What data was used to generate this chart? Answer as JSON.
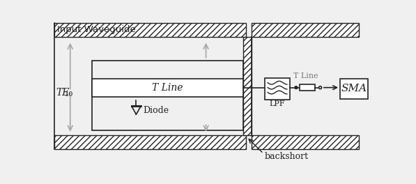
{
  "bg_color": "#f0f0f0",
  "fig_bg": "#f0f0f0",
  "lc": "#222222",
  "lc_light": "#aaaaaa",
  "figsize": [
    5.97,
    2.64
  ],
  "dpi": 100,
  "title": "Input Waveguide",
  "label_TE10": "TE",
  "label_TE10_sub": "10",
  "label_TLine": "T Line",
  "label_TLine2": "T Line",
  "label_Diode": "Diode",
  "label_LPF": "LPF",
  "label_SMA": "SMA",
  "label_backshort": "backshort"
}
